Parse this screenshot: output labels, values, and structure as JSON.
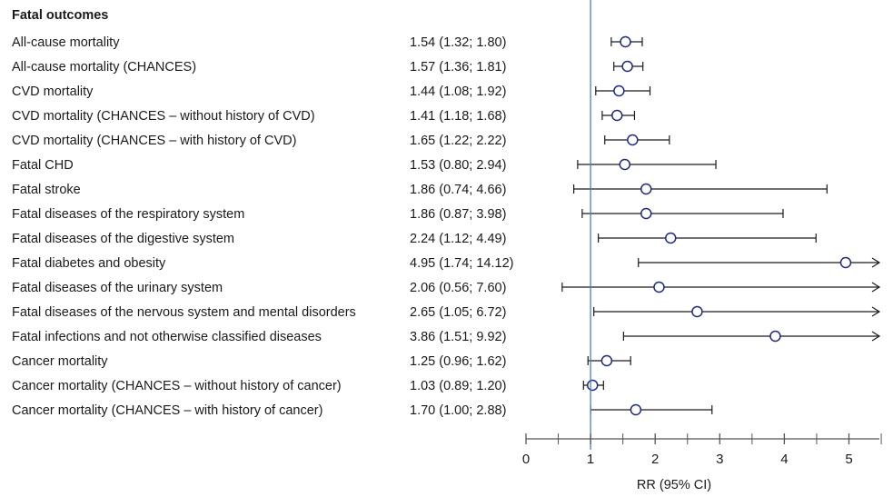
{
  "chart_data": {
    "type": "forest",
    "header": "Fatal outcomes",
    "xlabel": "RR (95% CI)",
    "xlim": [
      0,
      5.5
    ],
    "xticks": [
      0,
      1,
      2,
      3,
      4,
      5
    ],
    "reference_line": 1,
    "colors": {
      "marker": "#1f2a7a",
      "ref_line": "#4a7fc1",
      "ci": "#1a1a1a"
    },
    "rows": [
      {
        "label": "All-cause mortality",
        "text": "1.54 (1.32; 1.80)",
        "rr": 1.54,
        "lo": 1.32,
        "hi": 1.8
      },
      {
        "label": "All-cause mortality (CHANCES)",
        "text": "1.57 (1.36; 1.81)",
        "rr": 1.57,
        "lo": 1.36,
        "hi": 1.81
      },
      {
        "label": "CVD mortality",
        "text": "1.44 (1.08; 1.92)",
        "rr": 1.44,
        "lo": 1.08,
        "hi": 1.92
      },
      {
        "label": "CVD mortality (CHANCES – without history of CVD)",
        "text": "1.41 (1.18; 1.68)",
        "rr": 1.41,
        "lo": 1.18,
        "hi": 1.68
      },
      {
        "label": "CVD mortality (CHANCES – with history of CVD)",
        "text": "1.65 (1.22; 2.22)",
        "rr": 1.65,
        "lo": 1.22,
        "hi": 2.22
      },
      {
        "label": "Fatal CHD",
        "text": "1.53 (0.80; 2.94)",
        "rr": 1.53,
        "lo": 0.8,
        "hi": 2.94
      },
      {
        "label": "Fatal stroke",
        "text": "1.86 (0.74; 4.66)",
        "rr": 1.86,
        "lo": 0.74,
        "hi": 4.66
      },
      {
        "label": "Fatal diseases of the respiratory system",
        "text": "1.86 (0.87; 3.98)",
        "rr": 1.86,
        "lo": 0.87,
        "hi": 3.98
      },
      {
        "label": "Fatal diseases of the digestive system",
        "text": "2.24 (1.12; 4.49)",
        "rr": 2.24,
        "lo": 1.12,
        "hi": 4.49
      },
      {
        "label": "Fatal diabetes and obesity",
        "text": "4.95 (1.74; 14.12)",
        "rr": 4.95,
        "lo": 1.74,
        "hi": 14.12
      },
      {
        "label": "Fatal diseases of the urinary system",
        "text": "2.06 (0.56; 7.60)",
        "rr": 2.06,
        "lo": 0.56,
        "hi": 7.6
      },
      {
        "label": "Fatal diseases of the nervous system and mental disorders",
        "text": "2.65 (1.05; 6.72)",
        "rr": 2.65,
        "lo": 1.05,
        "hi": 6.72
      },
      {
        "label": "Fatal infections and not otherwise classified diseases",
        "text": "3.86 (1.51; 9.92)",
        "rr": 3.86,
        "lo": 1.51,
        "hi": 9.92
      },
      {
        "label": "Cancer mortality",
        "text": "1.25 (0.96; 1.62)",
        "rr": 1.25,
        "lo": 0.96,
        "hi": 1.62
      },
      {
        "label": "Cancer mortality (CHANCES – without history of cancer)",
        "text": "1.03 (0.89; 1.20)",
        "rr": 1.03,
        "lo": 0.89,
        "hi": 1.2
      },
      {
        "label": "Cancer mortality (CHANCES – with history of cancer)",
        "text": "1.70 (1.00; 2.88)",
        "rr": 1.7,
        "lo": 1.0,
        "hi": 2.88
      }
    ]
  }
}
